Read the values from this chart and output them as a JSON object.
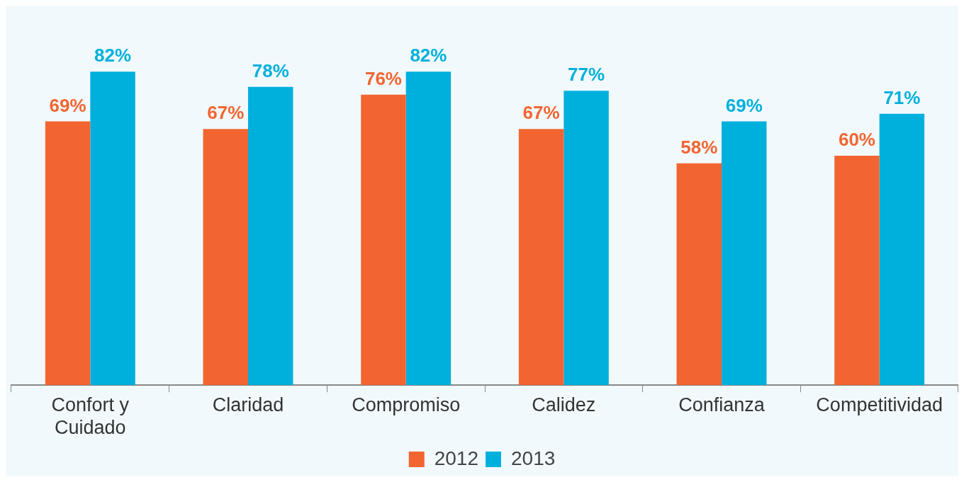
{
  "chart_data": {
    "type": "bar",
    "categories": [
      "Confort y\nCuidado",
      "Claridad",
      "Compromiso",
      "Calidez",
      "Confianza",
      "Competitividad"
    ],
    "series": [
      {
        "name": "2012",
        "color": "#f26531",
        "values": [
          69,
          67,
          76,
          67,
          58,
          60
        ],
        "value_labels": [
          "69%",
          "67%",
          "76%",
          "67%",
          "58%",
          "60%"
        ]
      },
      {
        "name": "2013",
        "color": "#00b0dc",
        "values": [
          82,
          78,
          82,
          77,
          69,
          71
        ],
        "value_labels": [
          "82%",
          "78%",
          "82%",
          "77%",
          "69%",
          "71%"
        ]
      }
    ],
    "relative": false,
    "legend": "bottom"
  }
}
